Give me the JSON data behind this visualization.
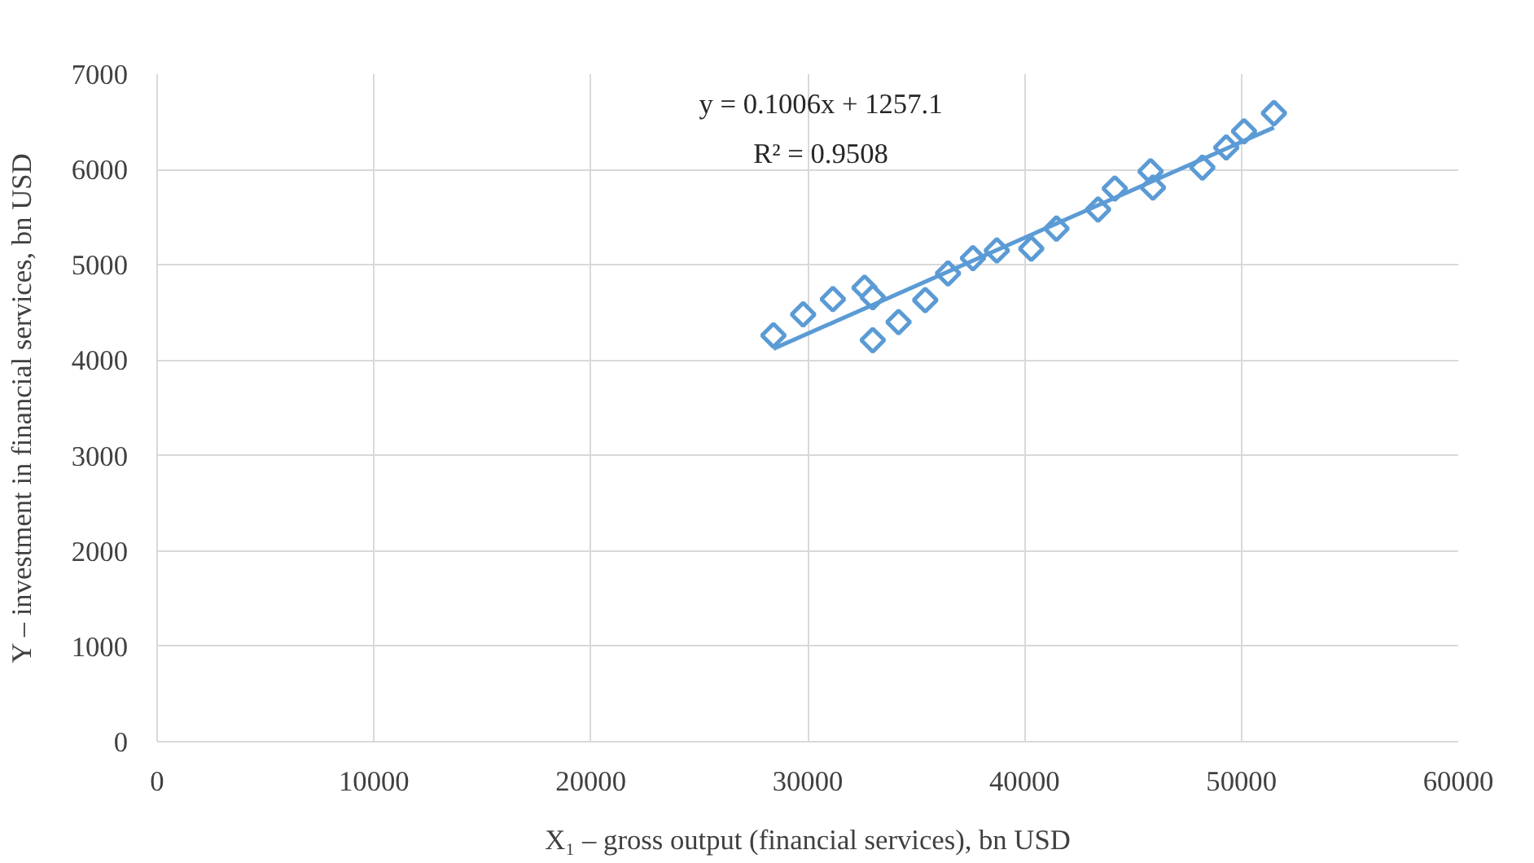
{
  "chart_data": {
    "type": "scatter",
    "xlabel": "X₁ – gross output (financial services), bn USD",
    "ylabel": "Y – investment in financial services, bn USD",
    "annotations": [
      "y = 0.1006x + 1257.1",
      "R² = 0.9508"
    ],
    "xlim": [
      0,
      60000
    ],
    "ylim": [
      0,
      7000
    ],
    "xticks": [
      0,
      10000,
      20000,
      30000,
      40000,
      50000,
      60000
    ],
    "yticks": [
      0,
      1000,
      2000,
      3000,
      4000,
      5000,
      6000,
      7000
    ],
    "grid": true,
    "series": [
      {
        "marker": "diamond",
        "color": "#5b9bd5",
        "x": [
          28420,
          29790,
          31160,
          32620,
          33000,
          33000,
          34190,
          35420,
          36470,
          37620,
          38720,
          40310,
          41470,
          43390,
          44160,
          45810,
          45920,
          48200,
          49300,
          50120,
          51500
        ],
        "values": [
          4260,
          4480,
          4640,
          4760,
          4660,
          4210,
          4400,
          4630,
          4910,
          5070,
          5150,
          5170,
          5380,
          5580,
          5800,
          5980,
          5810,
          6020,
          6230,
          6400,
          6590
        ]
      },
      {
        "type": "line",
        "marker": "none",
        "color": "#5b9bd5",
        "x": [
          28420,
          51500
        ],
        "values": [
          4120,
          6440
        ]
      }
    ]
  }
}
